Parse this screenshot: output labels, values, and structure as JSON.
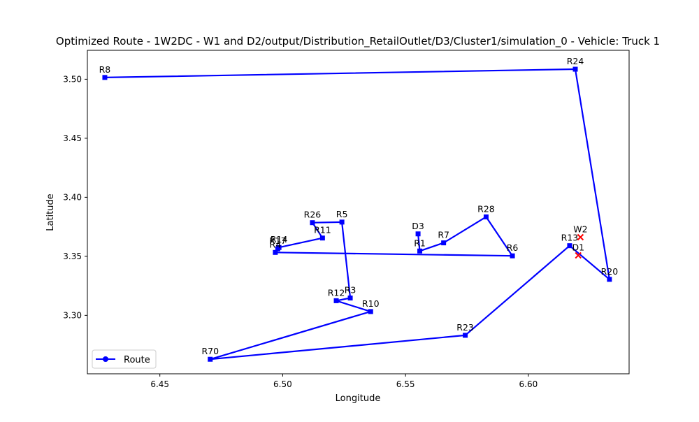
{
  "chart_data": {
    "type": "line",
    "title": "Optimized Route - 1W2DC - W1 and D2/output/Distribution_RetailOutlet/D3/Cluster1/simulation_0 - Vehicle: Truck 1",
    "xlabel": "Longitude",
    "ylabel": "Latitude",
    "xlim": [
      6.4205,
      6.641
    ],
    "ylim": [
      3.2505,
      3.5245
    ],
    "xticks": [
      6.45,
      6.5,
      6.55,
      6.6
    ],
    "xtick_labels": [
      "6.45",
      "6.50",
      "6.55",
      "6.60"
    ],
    "yticks": [
      3.3,
      3.35,
      3.4,
      3.45,
      3.5
    ],
    "ytick_labels": [
      "3.30",
      "3.35",
      "3.40",
      "3.45",
      "3.50"
    ],
    "grid": false,
    "legend": {
      "position": "lower-left",
      "entries": [
        "Route"
      ]
    },
    "series": [
      {
        "name": "Route",
        "color": "#0000ff",
        "marker": "circle",
        "points": [
          {
            "label": "D3",
            "x": 6.5551,
            "y": 3.369
          },
          {
            "label": "R1",
            "x": 6.5558,
            "y": 3.3545
          },
          {
            "label": "R7",
            "x": 6.5655,
            "y": 3.3614
          },
          {
            "label": "R28",
            "x": 6.5828,
            "y": 3.3834
          },
          {
            "label": "R6",
            "x": 6.5935,
            "y": 3.3504
          },
          {
            "label": "R4",
            "x": 6.497,
            "y": 3.3533
          },
          {
            "label": "R17",
            "x": 6.498,
            "y": 3.3563
          },
          {
            "label": "R14",
            "x": 6.4985,
            "y": 3.3575
          },
          {
            "label": "R11",
            "x": 6.5162,
            "y": 3.3655
          },
          {
            "label": "R26",
            "x": 6.5121,
            "y": 3.3785
          },
          {
            "label": "R5",
            "x": 6.5241,
            "y": 3.379
          },
          {
            "label": "R3",
            "x": 6.5275,
            "y": 3.3147
          },
          {
            "label": "R12",
            "x": 6.5218,
            "y": 3.3124
          },
          {
            "label": "R10",
            "x": 6.5358,
            "y": 3.3032
          },
          {
            "label": "R70",
            "x": 6.4705,
            "y": 3.2628
          },
          {
            "label": "R23",
            "x": 6.5743,
            "y": 3.2831
          },
          {
            "label": "R13",
            "x": 6.6168,
            "y": 3.359
          },
          {
            "label": "R20",
            "x": 6.633,
            "y": 3.3305
          },
          {
            "label": "R24",
            "x": 6.6191,
            "y": 3.5085
          },
          {
            "label": "R8",
            "x": 6.4276,
            "y": 3.5015
          }
        ]
      },
      {
        "color": "#ff0000",
        "marker": "x",
        "points": [
          {
            "label": "W2",
            "x": 6.6212,
            "y": 3.3662
          },
          {
            "label": "D1",
            "x": 6.6203,
            "y": 3.3508
          }
        ]
      }
    ]
  }
}
